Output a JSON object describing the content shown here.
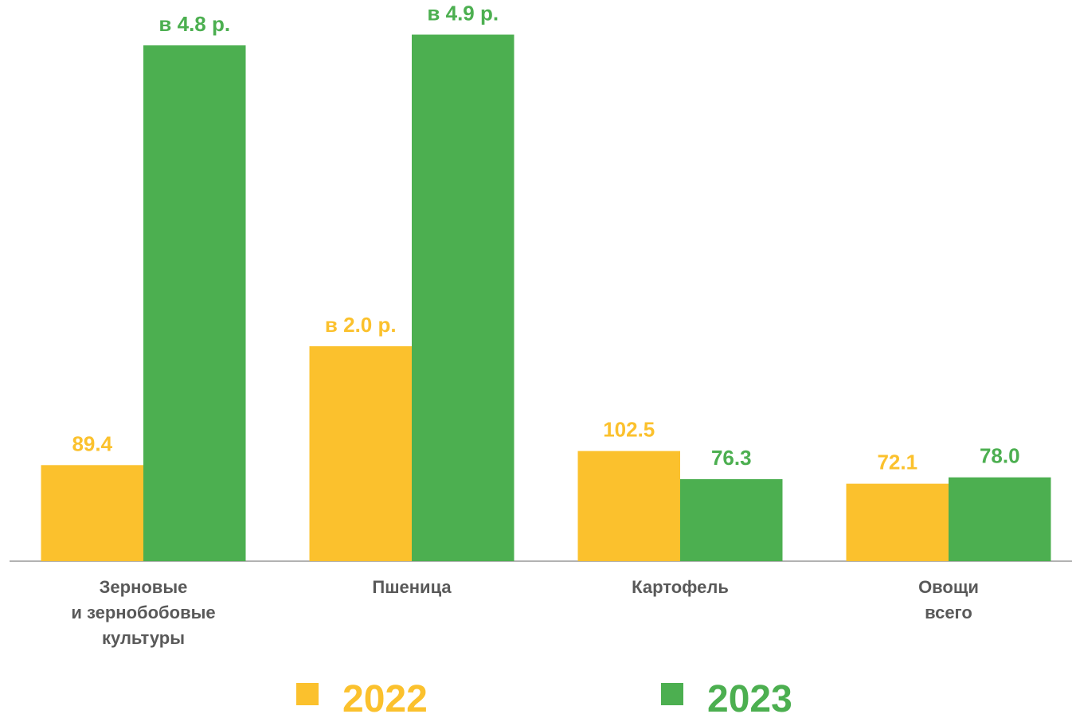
{
  "chart_data": {
    "type": "bar",
    "categories": [
      "Зерновые\nи зернобобовые\nкультуры",
      "Пшеница",
      "Картофель",
      "Овощи\nвсего"
    ],
    "series": [
      {
        "name": "2022",
        "color": "#fbc12d",
        "values": [
          89.4,
          200,
          102.5,
          72.1
        ],
        "value_labels": [
          "89.4",
          "в 2.0 р.",
          "102.5",
          "72.1"
        ]
      },
      {
        "name": "2023",
        "color": "#4caf50",
        "values": [
          480,
          490,
          76.3,
          78.0
        ],
        "value_labels": [
          "в 4.8 р.",
          "в 4.9 р.",
          "76.3",
          "78.0"
        ]
      }
    ],
    "ylim": [
      0,
      500
    ],
    "legend": "bottom"
  }
}
